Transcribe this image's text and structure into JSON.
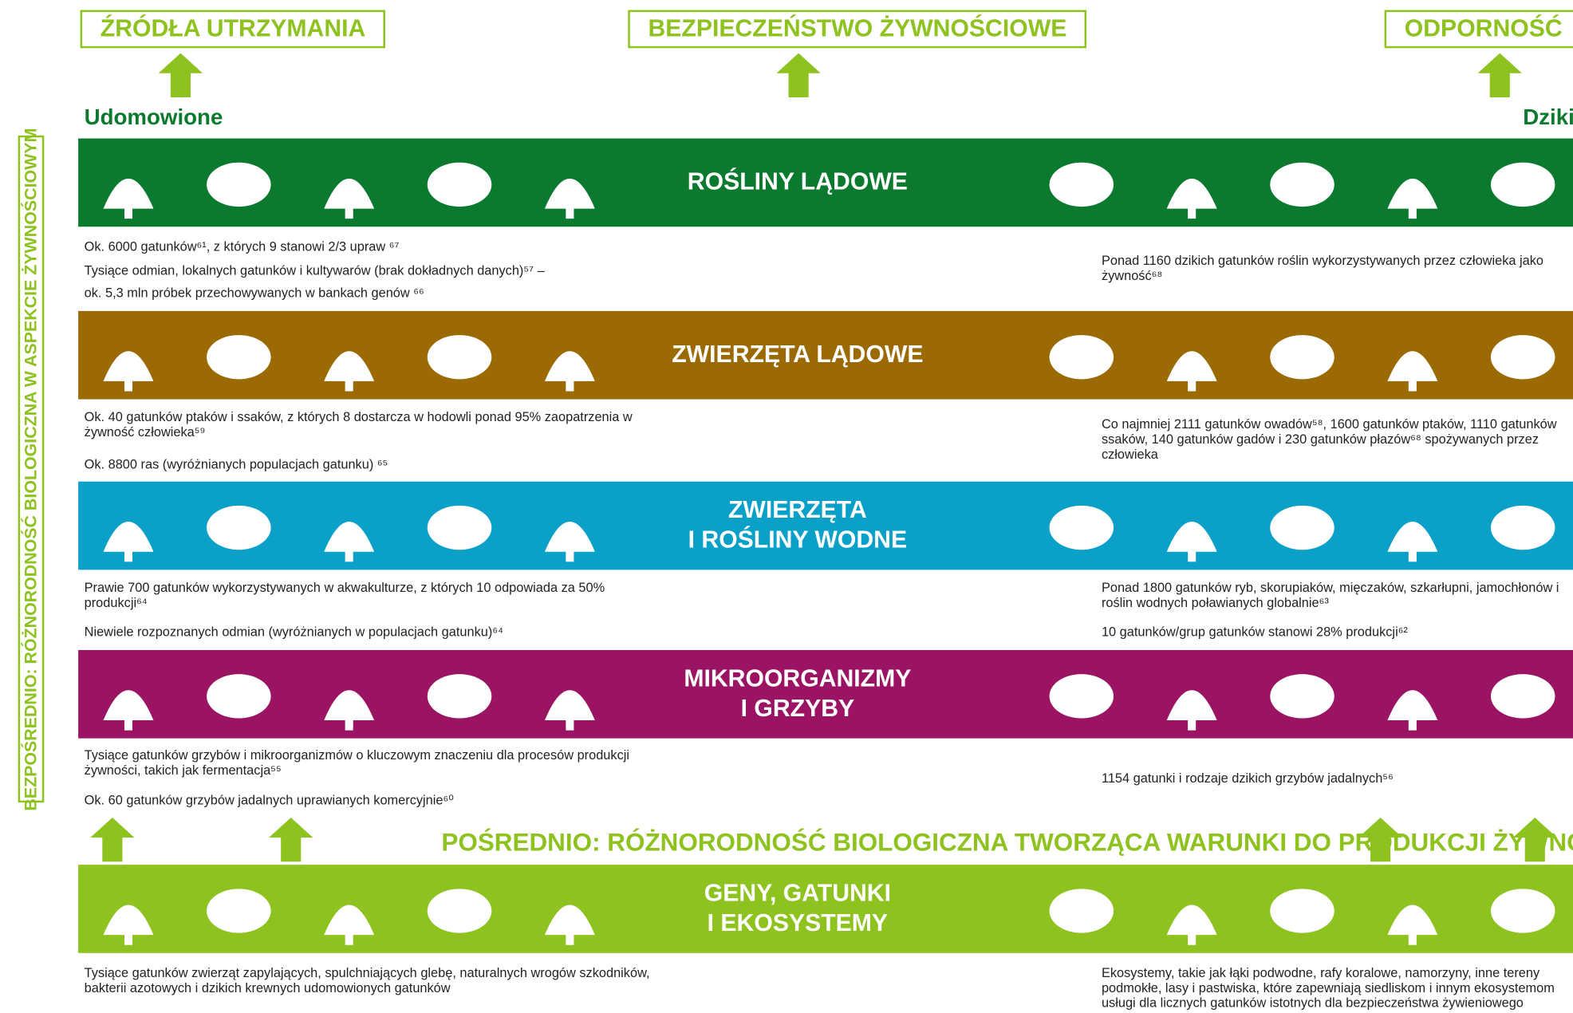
{
  "top_labels": [
    "ŹRÓDŁA UTRZYMANIA",
    "BEZPIECZEŃSTWO ŻYWNOŚCIOWE",
    "ODPORNOŚĆ"
  ],
  "side_label": "BEZPOŚREDNIO: RÓŻNORODNOŚĆ BIOLOGICZNA W ASPEKCIE ŻYWNOŚCIOWYM",
  "domesticated_label": "Udomowione",
  "wild_label": "Dzikie",
  "bands": [
    {
      "title": [
        "ROŚLINY LĄDOWE"
      ],
      "color": "#0b7a2e",
      "left": [
        "Ok. 6000 gatunków⁶¹, z których 9 stanowi 2/3 upraw ⁶⁷",
        "Tysiące odmian, lokalnych gatunków i kultywarów (brak dokładnych danych)⁵⁷ –",
        "ok. 5,3 mln próbek przechowywanych w bankach genów ⁶⁶"
      ],
      "right": [
        "Ponad 1160 dzikich gatunków roślin wykorzystywanych przez człowieka jako żywność⁶⁸"
      ]
    },
    {
      "title": [
        "ZWIERZĘTA LĄDOWE"
      ],
      "color": "#9c6a05",
      "left": [
        "Ok. 40 gatunków ptaków i ssaków, z których 8 dostarcza w hodowli ponad 95% zaopatrzenia w żywność człowieka⁵⁹",
        "Ok. 8800 ras (wyróżnianych populacjach gatunku) ⁶⁵"
      ],
      "right": [
        "Co najmniej 2111 gatunków owadów⁵⁸, 1600 gatunków ptaków, 1110 gatunków ssaków, 140 gatunków gadów i 230 gatunków płazów⁶⁸ spożywanych przez człowieka"
      ]
    },
    {
      "title": [
        "ZWIERZĘTA",
        "I ROŚLINY WODNE"
      ],
      "color": "#0aa0c8",
      "left": [
        "Prawie 700 gatunków wykorzystywanych w akwakulturze, z których 10 odpowiada za 50% produkcji⁶⁴",
        "Niewiele rozpoznanych odmian (wyróżnianych w populacjach gatunku)⁶⁴"
      ],
      "right": [
        "Ponad 1800 gatunków ryb, skorupiaków, mięczaków, szkarłupni, jamochłonów i roślin wodnych poławianych globalnie⁶³",
        "10 gatunków/grup gatunków stanowi 28% produkcji⁶²"
      ]
    },
    {
      "title": [
        "MIKROORGANIZMY",
        "I GRZYBY"
      ],
      "color": "#9b1464",
      "left": [
        "Tysiące gatunków grzybów i mikroorganizmów o kluczowym znaczeniu dla procesów produkcji żywności, takich jak fermentacja⁵⁵",
        "Ok. 60 gatunków grzybów jadalnych uprawianych komercyjnie⁶⁰"
      ],
      "right": [
        "1154 gatunki i rodzaje dzikich grzybów jadalnych⁵⁶"
      ]
    },
    {
      "title": [
        "GENY, GATUNKI",
        "I EKOSYSTEMY"
      ],
      "color": "#8dc21f",
      "left": [
        "Tysiące gatunków zwierząt zapylających, spulchniających glebę, naturalnych wrogów szkodników, bakterii azotowych i dzikich krewnych udomowionych gatunków"
      ],
      "right": [
        "Ekosystemy, takie jak łąki podwodne, rafy koralowe, namorzyny, inne tereny podmokłe, lasy i pastwiska, które zapewniają siedliskom i innym ekosystemom usługi dla licznych gatunków istotnych dla bezpieczeństwa żywieniowego"
      ]
    }
  ],
  "indirect_label": "POŚREDNIO: RÓŻNORODNOŚĆ BIOLOGICZNA TWORZĄCA   WARUNKI DO PRODUKCJI ŻYWNOŚCI"
}
